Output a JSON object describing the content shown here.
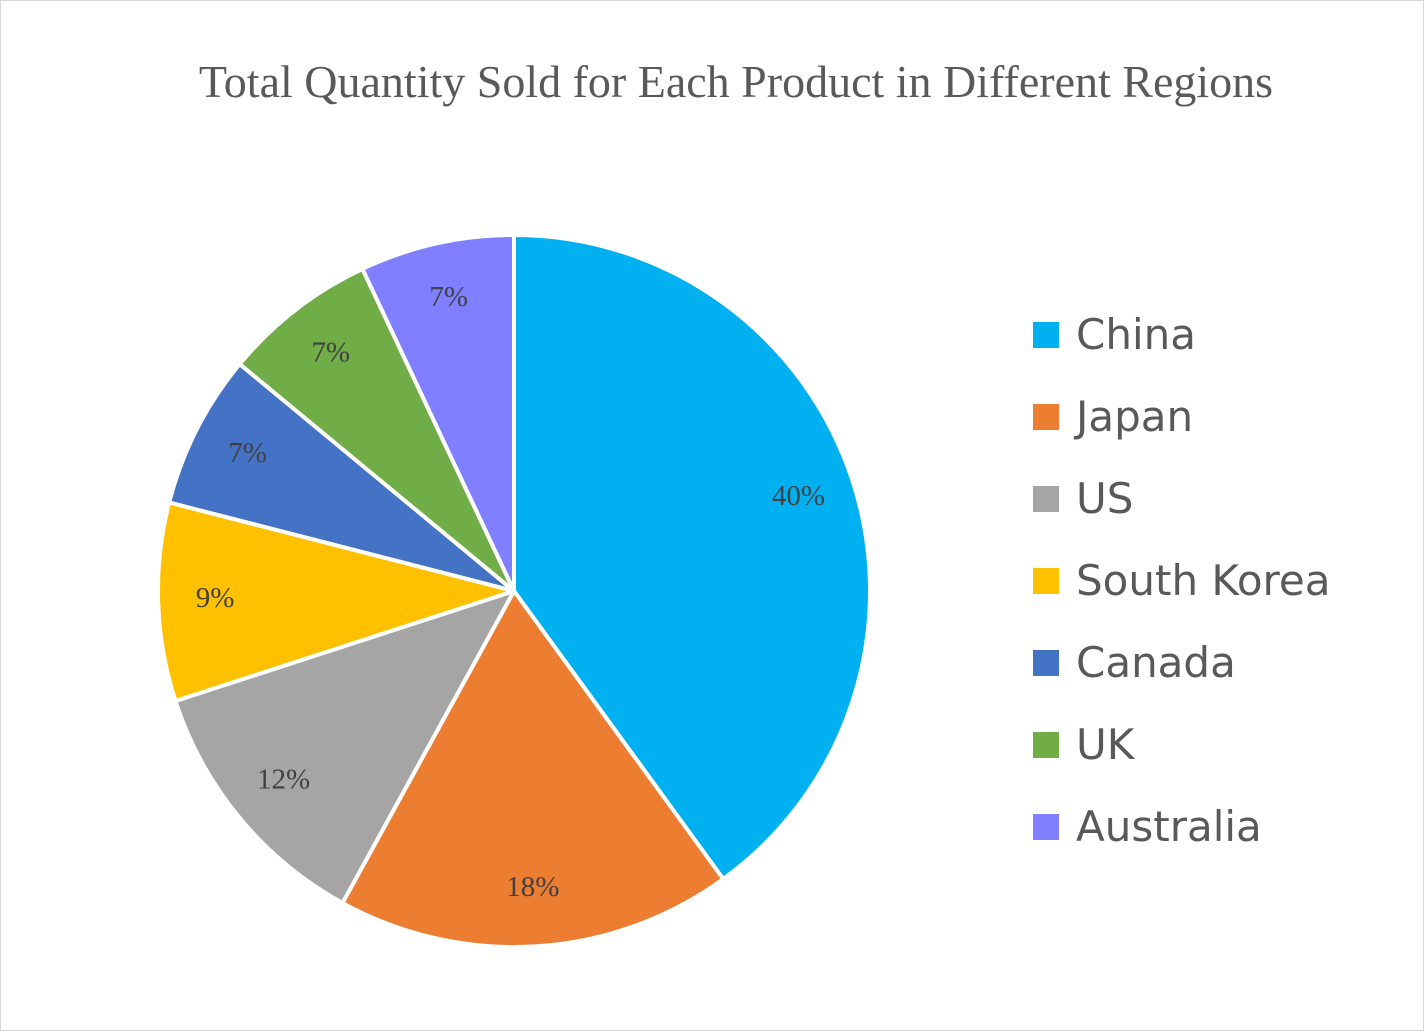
{
  "chart_data": {
    "type": "pie",
    "title": "Total Quantity Sold for Each Product in Different Regions",
    "legend_position": "right",
    "categories": [
      "China",
      "Japan",
      "US",
      "South Korea",
      "Canada",
      "UK",
      "Australia"
    ],
    "values": [
      40,
      18,
      12,
      9,
      7,
      7,
      7
    ],
    "labels": [
      "40%",
      "18%",
      "12%",
      "9%",
      "7%",
      "7%",
      "7%"
    ],
    "colors": [
      "#00B0F0",
      "#ED7D31",
      "#A5A5A5",
      "#FFC000",
      "#4472C4",
      "#70AD47",
      "#7F7FFF"
    ]
  }
}
